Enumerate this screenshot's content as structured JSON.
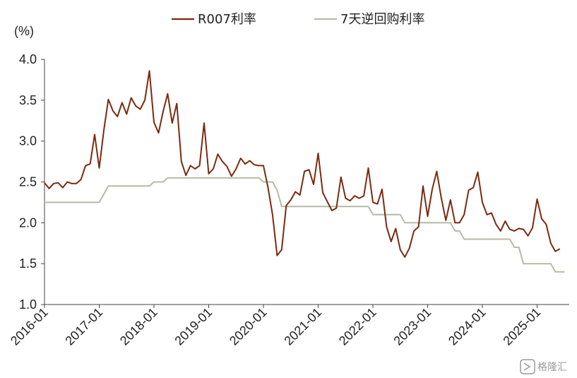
{
  "watermark": "格隆汇",
  "chart_data": {
    "type": "line",
    "ylabel": "(%)",
    "ylim": [
      1.0,
      4.0
    ],
    "yticks": [
      "1.0",
      "1.5",
      "2.0",
      "2.5",
      "3.0",
      "3.5",
      "4.0"
    ],
    "xticks": [
      "2016-01",
      "2017-01",
      "2018-01",
      "2019-01",
      "2020-01",
      "2021-01",
      "2022-01",
      "2023-01",
      "2024-01",
      "2025-01"
    ],
    "x_start": "2016-01",
    "legend_position": "top-center",
    "series": [
      {
        "name": "R007利率",
        "color": "#7b2a10",
        "values": [
          2.49,
          2.42,
          2.48,
          2.49,
          2.43,
          2.5,
          2.48,
          2.48,
          2.53,
          2.7,
          2.72,
          3.08,
          2.67,
          3.13,
          3.51,
          3.37,
          3.3,
          3.47,
          3.33,
          3.53,
          3.43,
          3.39,
          3.5,
          3.86,
          3.23,
          3.1,
          3.36,
          3.58,
          3.22,
          3.46,
          2.75,
          2.58,
          2.7,
          2.66,
          2.7,
          3.22,
          2.6,
          2.66,
          2.84,
          2.75,
          2.69,
          2.57,
          2.66,
          2.79,
          2.72,
          2.76,
          2.71,
          2.7,
          2.7,
          2.43,
          2.1,
          1.6,
          1.67,
          2.21,
          2.28,
          2.38,
          2.34,
          2.63,
          2.65,
          2.47,
          2.85,
          2.37,
          2.26,
          2.15,
          2.18,
          2.56,
          2.3,
          2.27,
          2.33,
          2.3,
          2.33,
          2.67,
          2.25,
          2.23,
          2.41,
          1.95,
          1.77,
          1.93,
          1.67,
          1.58,
          1.69,
          1.9,
          1.95,
          2.45,
          2.08,
          2.41,
          2.63,
          2.3,
          2.03,
          2.28,
          2.0,
          2.0,
          2.1,
          2.4,
          2.43,
          2.62,
          2.25,
          2.1,
          2.12,
          1.98,
          1.9,
          2.02,
          1.92,
          1.9,
          1.93,
          1.92,
          1.84,
          1.94,
          2.29,
          2.05,
          1.98,
          1.75,
          1.65,
          1.68
        ]
      },
      {
        "name": "7天逆回购利率",
        "color": "#b7b9a5",
        "values": [
          2.25,
          2.25,
          2.25,
          2.25,
          2.25,
          2.25,
          2.25,
          2.25,
          2.25,
          2.25,
          2.25,
          2.25,
          2.25,
          2.35,
          2.45,
          2.45,
          2.45,
          2.45,
          2.45,
          2.45,
          2.45,
          2.45,
          2.45,
          2.45,
          2.5,
          2.5,
          2.5,
          2.55,
          2.55,
          2.55,
          2.55,
          2.55,
          2.55,
          2.55,
          2.55,
          2.55,
          2.55,
          2.55,
          2.55,
          2.55,
          2.55,
          2.55,
          2.55,
          2.55,
          2.55,
          2.55,
          2.55,
          2.55,
          2.5,
          2.5,
          2.5,
          2.4,
          2.2,
          2.2,
          2.2,
          2.2,
          2.2,
          2.2,
          2.2,
          2.2,
          2.2,
          2.2,
          2.2,
          2.2,
          2.2,
          2.2,
          2.2,
          2.2,
          2.2,
          2.2,
          2.2,
          2.2,
          2.1,
          2.1,
          2.1,
          2.1,
          2.1,
          2.1,
          2.1,
          2.0,
          2.0,
          2.0,
          2.0,
          2.0,
          2.0,
          2.0,
          2.0,
          2.0,
          2.0,
          2.0,
          1.9,
          1.9,
          1.8,
          1.8,
          1.8,
          1.8,
          1.8,
          1.8,
          1.8,
          1.8,
          1.8,
          1.8,
          1.8,
          1.7,
          1.7,
          1.5,
          1.5,
          1.5,
          1.5,
          1.5,
          1.5,
          1.5,
          1.4,
          1.4,
          1.4
        ]
      }
    ]
  }
}
